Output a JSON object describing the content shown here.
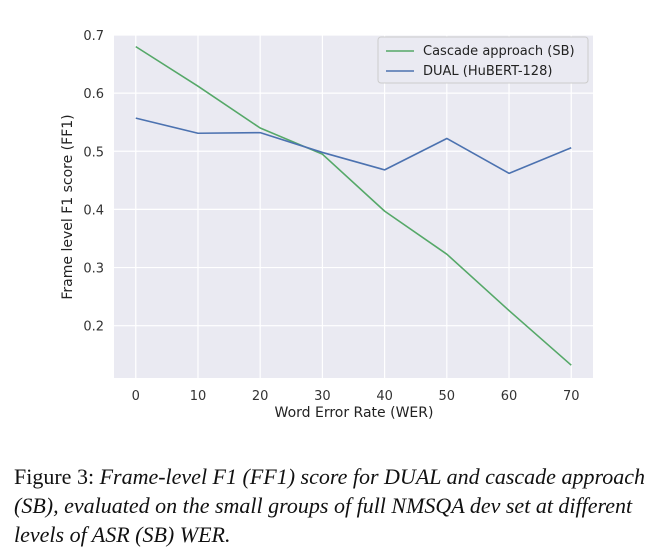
{
  "chart_data": {
    "type": "line",
    "x": [
      0,
      10,
      20,
      30,
      40,
      50,
      60,
      70
    ],
    "series": [
      {
        "name": "Cascade approach (SB)",
        "color": "#55a868",
        "values": [
          0.68,
          0.612,
          0.54,
          0.495,
          0.397,
          0.323,
          0.226,
          0.132
        ]
      },
      {
        "name": "DUAL (HuBERT-128)",
        "color": "#4c72b0",
        "values": [
          0.557,
          0.531,
          0.532,
          0.498,
          0.468,
          0.522,
          0.462,
          0.506
        ]
      }
    ],
    "xlabel": "Word Error Rate (WER)",
    "ylabel": "Frame level F1 score (FF1)",
    "xticks": [
      "0",
      "10",
      "20",
      "30",
      "40",
      "50",
      "60",
      "70"
    ],
    "xtick_values": [
      0,
      10,
      20,
      30,
      40,
      50,
      60,
      70
    ],
    "yticks": [
      "0.2",
      "0.3",
      "0.4",
      "0.5",
      "0.6",
      "0.7"
    ],
    "ytick_values": [
      0.2,
      0.3,
      0.4,
      0.5,
      0.6,
      0.7
    ],
    "xlim": [
      -3.5,
      73.5
    ],
    "ylim": [
      0.11,
      0.7
    ],
    "grid": true,
    "legend_position": "top-right",
    "background": "#eaeaf2"
  },
  "caption": {
    "label": "Figure 3:",
    "text": "Frame-level F1 (FF1) score for DUAL and cascade approach (SB), evaluated on the small groups of full NMSQA dev set at different levels of ASR (SB) WER."
  }
}
